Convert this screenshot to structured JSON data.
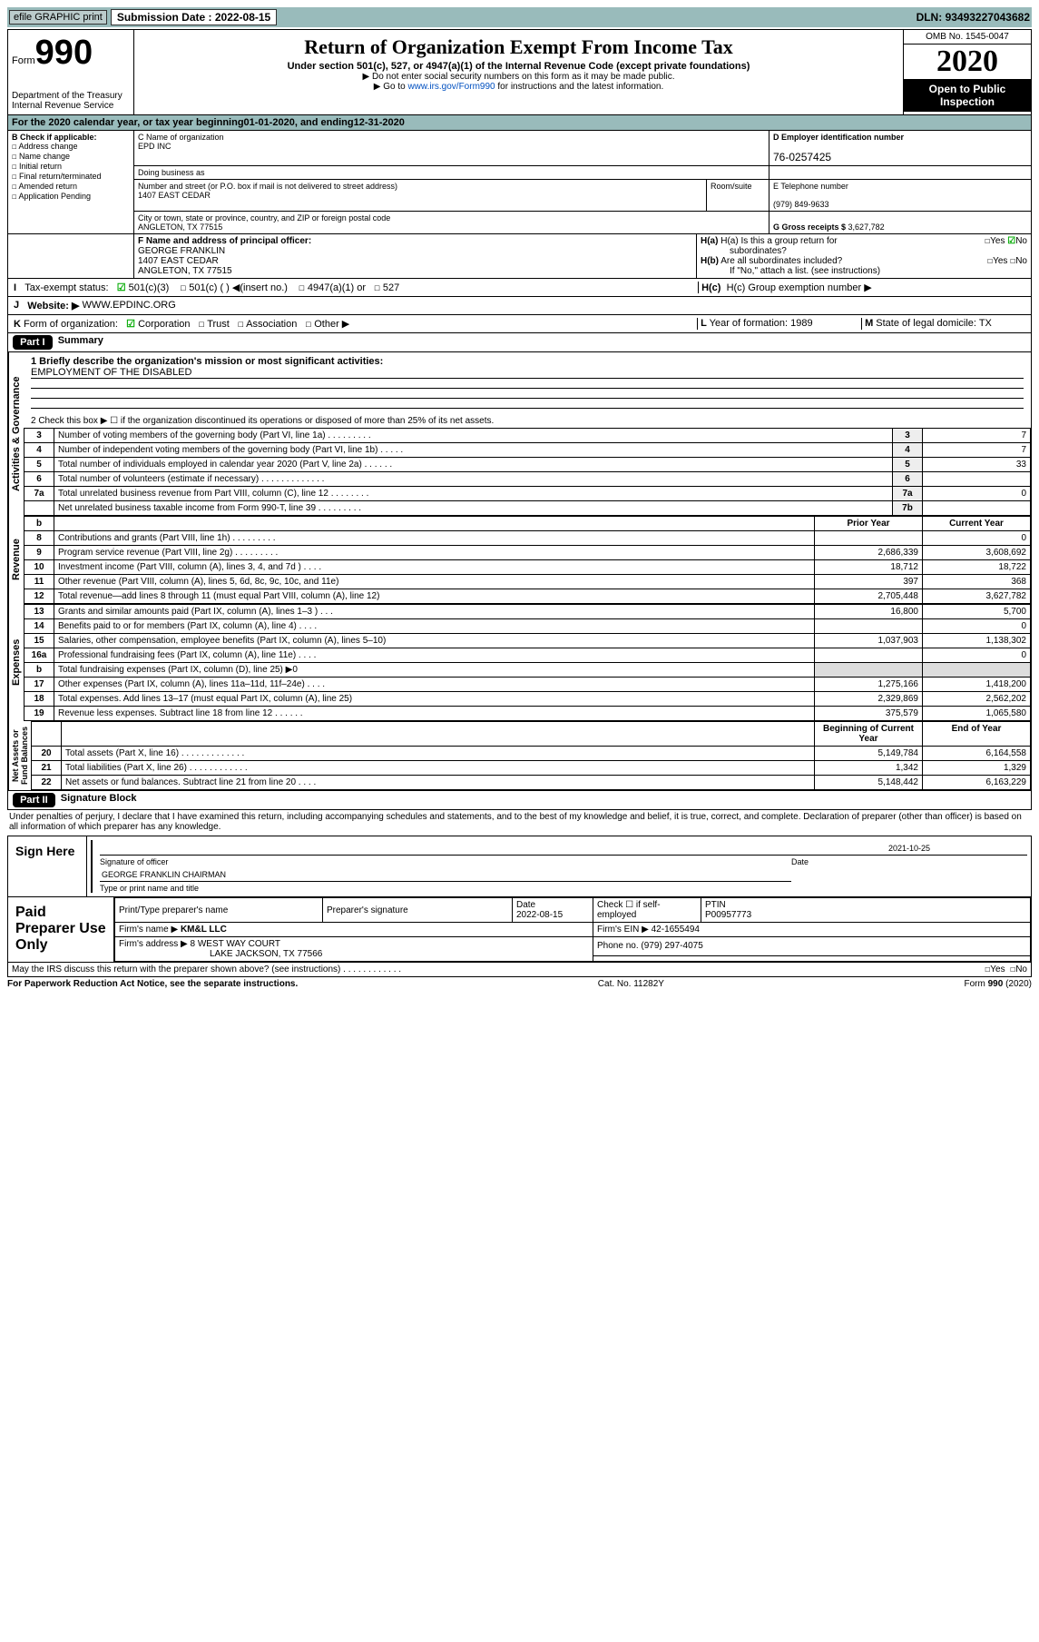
{
  "topbar": {
    "efile": "efile GRAPHIC print",
    "subdate_label": "Submission Date : ",
    "subdate": "2022-08-15",
    "dln_label": "DLN: ",
    "dln": "93493227043682"
  },
  "hdr": {
    "form": "Form",
    "n990": "990",
    "dept": "Department of the Treasury\nInternal Revenue Service",
    "title": "Return of Organization Exempt From Income Tax",
    "sub": "Under section 501(c), 527, or 4947(a)(1) of the Internal Revenue Code (except private foundations)",
    "n1": "▶ Do not enter social security numbers on this form as it may be made public.",
    "n2a": "▶ Go to ",
    "n2link": "www.irs.gov/Form990",
    "n2b": " for instructions and the latest information.",
    "omb": "OMB No. 1545-0047",
    "year": "2020",
    "pub": "Open to Public\nInspection"
  },
  "cal": {
    "a": "For the 2020 calendar year, or tax year beginning ",
    "b": "01-01-2020",
    "c": "  , and ending ",
    "d": "12-31-2020"
  },
  "B": {
    "hdr": "B Check if applicable:",
    "addr": "Address change",
    "name": "Name change",
    "init": "Initial return",
    "final": "Final return/terminated",
    "amend": "Amended return",
    "app": "Application Pending"
  },
  "C": {
    "lbl": "C Name of organization",
    "org": "EPD INC",
    "dba_lbl": "Doing business as",
    "dba": "",
    "addr_lbl": "Number and street (or P.O. box if mail is not delivered to street address)",
    "room": "Room/suite",
    "addr": "1407 EAST CEDAR",
    "city_lbl": "City or town, state or province, country, and ZIP or foreign postal code",
    "city": "ANGLETON, TX  77515"
  },
  "D": {
    "lbl": "D Employer identification number",
    "ein": "76-0257425"
  },
  "E": {
    "lbl": "E Telephone number",
    "tel": "(979) 849-9633"
  },
  "G": {
    "lbl": "G Gross receipts $ ",
    "val": "3,627,782"
  },
  "F": {
    "lbl": "F  Name and address of principal officer:",
    "name": "GEORGE FRANKLIN",
    "addr": "1407 EAST CEDAR\nANGLETON, TX  77515"
  },
  "H": {
    "a": "H(a)  Is this a group return for",
    "a2": "subordinates?",
    "b": "H(b)  Are all subordinates included?",
    "bnote": "If \"No,\" attach a list. (see instructions)",
    "c": "H(c)  Group exemption number ▶",
    "yes": "Yes",
    "no": "No"
  },
  "I": {
    "lbl": "I   Tax-exempt status:",
    "o1": "501(c)(3)",
    "o2": "501(c) (  ) ◀(insert no.)",
    "o3": "4947(a)(1) or",
    "o4": "527"
  },
  "J": {
    "lbl": "J   Website: ▶ ",
    "val": "WWW.EPDINC.ORG"
  },
  "K": {
    "lbl": "K Form of organization: ",
    "corp": "Corporation",
    "trust": "Trust",
    "assoc": "Association",
    "other": "Other ▶"
  },
  "L": {
    "lbl": "L Year of formation: ",
    "val": "1989"
  },
  "M": {
    "lbl": "M State of legal domicile: ",
    "val": "TX"
  },
  "p1": {
    "hdr": "Part I",
    "title": "Summary",
    "l1": "1  Briefly describe the organization's mission or most significant activities:",
    "mission": "EMPLOYMENT OF THE DISABLED",
    "l2": "2    Check this box ▶ ☐  if the organization discontinued its operations or disposed of more than 25% of its net assets.",
    "rows": [
      {
        "n": "3",
        "t": "Number of voting members of the governing body (Part VI, line 1a)   .    .    .    .    .    .    .    .    .",
        "b": "3",
        "v": "7"
      },
      {
        "n": "4",
        "t": "Number of independent voting members of the governing body (Part VI, line 1b)  .    .    .    .    .",
        "b": "4",
        "v": "7"
      },
      {
        "n": "5",
        "t": "Total number of individuals employed in calendar year 2020 (Part V, line 2a)  .    .    .    .    .    .",
        "b": "5",
        "v": "33"
      },
      {
        "n": "6",
        "t": "Total number of volunteers (estimate if necessary)  .    .    .    .    .    .    .    .    .    .    .    .    .",
        "b": "6",
        "v": ""
      },
      {
        "n": "7a",
        "t": "Total unrelated business revenue from Part VIII, column (C), line 12  .    .    .    .    .    .    .    .",
        "b": "7a",
        "v": "0"
      },
      {
        "n": "",
        "t": "Net unrelated business taxable income from Form 990-T, line 39  .    .    .    .    .    .    .    .    .",
        "b": "7b",
        "v": ""
      }
    ],
    "colhdr": {
      "prior": "Prior Year",
      "curr": "Current Year"
    },
    "rev": [
      {
        "n": "8",
        "t": "Contributions and grants (Part VIII, line 1h)  .    .    .    .    .    .    .    .    .",
        "p": "",
        "c": "0"
      },
      {
        "n": "9",
        "t": "Program service revenue (Part VIII, line 2g)  .    .    .    .    .    .    .    .    .",
        "p": "2,686,339",
        "c": "3,608,692"
      },
      {
        "n": "10",
        "t": "Investment income (Part VIII, column (A), lines 3, 4, and 7d )  .    .    .    .",
        "p": "18,712",
        "c": "18,722"
      },
      {
        "n": "11",
        "t": "Other revenue (Part VIII, column (A), lines 5, 6d, 8c, 9c, 10c, and 11e)",
        "p": "397",
        "c": "368"
      },
      {
        "n": "12",
        "t": "Total revenue—add lines 8 through 11 (must equal Part VIII, column (A), line 12)",
        "p": "2,705,448",
        "c": "3,627,782"
      }
    ],
    "exp": [
      {
        "n": "13",
        "t": "Grants and similar amounts paid (Part IX, column (A), lines 1–3 )  .    .    .",
        "p": "16,800",
        "c": "5,700"
      },
      {
        "n": "14",
        "t": "Benefits paid to or for members (Part IX, column (A), line 4)  .    .    .    .",
        "p": "",
        "c": "0"
      },
      {
        "n": "15",
        "t": "Salaries, other compensation, employee benefits (Part IX, column (A), lines 5–10)",
        "p": "1,037,903",
        "c": "1,138,302"
      },
      {
        "n": "16a",
        "t": "Professional fundraising fees (Part IX, column (A), line 11e)  .    .    .    .",
        "p": "",
        "c": "0"
      },
      {
        "n": "b",
        "t": "Total fundraising expenses (Part IX, column (D), line 25) ▶0",
        "p": "GRAY",
        "c": "GRAY"
      },
      {
        "n": "17",
        "t": "Other expenses (Part IX, column (A), lines 11a–11d, 11f–24e)  .    .    .    .",
        "p": "1,275,166",
        "c": "1,418,200"
      },
      {
        "n": "18",
        "t": "Total expenses. Add lines 13–17 (must equal Part IX, column (A), line 25)",
        "p": "2,329,869",
        "c": "2,562,202"
      },
      {
        "n": "19",
        "t": "Revenue less expenses. Subtract line 18 from line 12  .    .    .    .    .    .",
        "p": "375,579",
        "c": "1,065,580"
      }
    ],
    "colhdr2": {
      "beg": "Beginning of Current Year",
      "end": "End of Year"
    },
    "net": [
      {
        "n": "20",
        "t": "Total assets (Part X, line 16)  .    .    .    .    .    .    .    .    .    .    .    .    .",
        "p": "5,149,784",
        "c": "6,164,558"
      },
      {
        "n": "21",
        "t": "Total liabilities (Part X, line 26)  .    .    .    .    .    .    .    .    .    .    .    .",
        "p": "1,342",
        "c": "1,329"
      },
      {
        "n": "22",
        "t": "Net assets or fund balances. Subtract line 21 from line 20  .    .    .    .",
        "p": "5,148,442",
        "c": "6,163,229"
      }
    ],
    "vlabels": {
      "ag": "Activities & Governance",
      "rev": "Revenue",
      "exp": "Expenses",
      "net": "Net Assets or\nFund Balances"
    }
  },
  "p2": {
    "hdr": "Part II",
    "title": "Signature Block",
    "decl": "Under penalties of perjury, I declare that I have examined this return, including accompanying schedules and statements, and to the best of my knowledge and belief, it is true, correct, and complete. Declaration of preparer (other than officer) is based on all information of which preparer has any knowledge."
  },
  "sign": {
    "lbl": "Sign Here",
    "sig": "Signature of officer",
    "date_lbl": "Date",
    "date": "2021-10-25",
    "name": "GEORGE FRANKLIN  CHAIRMAN",
    "type": "Type or print name and title"
  },
  "prep": {
    "lbl": "Paid Preparer Use Only",
    "h1": "Print/Type preparer's name",
    "h2": "Preparer's signature",
    "h3": "Date",
    "d3": "2022-08-15",
    "h4": "Check ☐ if self-employed",
    "h5": "PTIN",
    "ptin": "P00957773",
    "firm_lbl": "Firm's name   ▶ ",
    "firm": "KM&L LLC",
    "fein_lbl": "Firm's EIN ▶ ",
    "fein": "42-1655494",
    "addr_lbl": "Firm's address ▶ ",
    "addr": "8 WEST WAY COURT",
    "city": "LAKE JACKSON,  TX  77566",
    "phone_lbl": "Phone no. ",
    "phone": "(979) 297-4075",
    "discuss": "May the IRS discuss this return with the preparer shown above? (see instructions)   .    .    .    .    .    .    .    .    .    .    .    .",
    "yes": "Yes",
    "no": "No"
  },
  "foot": {
    "pra": "For Paperwork Reduction Act Notice, see the separate instructions.",
    "cat": "Cat. No. 11282Y",
    "form": "Form 990 (2020)"
  }
}
